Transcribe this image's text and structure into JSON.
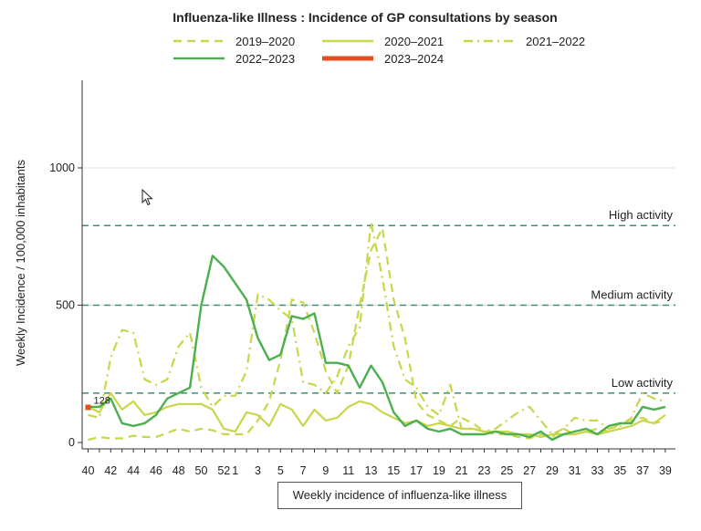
{
  "chart_data": {
    "type": "line",
    "title": "Influenza-like Illness : Incidence of GP consultations by season",
    "xlabel": "Weekly incidence of influenza-like illness",
    "ylabel": "Weekly Incidence / 100,000 inhabitants",
    "ylim": [
      0,
      1300
    ],
    "yticks": [
      0,
      500,
      1000
    ],
    "xticks": [
      "40",
      "42",
      "44",
      "46",
      "48",
      "50",
      "52",
      "1",
      "3",
      "5",
      "7",
      "9",
      "11",
      "13",
      "15",
      "17",
      "19",
      "21",
      "23",
      "25",
      "27",
      "29",
      "31",
      "33",
      "35",
      "37",
      "39"
    ],
    "weeks": [
      "40",
      "41",
      "42",
      "43",
      "44",
      "45",
      "46",
      "47",
      "48",
      "49",
      "50",
      "51",
      "52",
      "1",
      "2",
      "3",
      "4",
      "5",
      "6",
      "7",
      "8",
      "9",
      "10",
      "11",
      "12",
      "13",
      "14",
      "15",
      "16",
      "17",
      "18",
      "19",
      "20",
      "21",
      "22",
      "23",
      "24",
      "25",
      "26",
      "27",
      "28",
      "29",
      "30",
      "31",
      "32",
      "33",
      "34",
      "35",
      "36",
      "37",
      "38",
      "39"
    ],
    "thresholds": [
      {
        "label": "Low activity",
        "value": 180
      },
      {
        "label": "Medium activity",
        "value": 500
      },
      {
        "label": "High activity",
        "value": 790
      }
    ],
    "series": [
      {
        "name": "2019–2020",
        "color": "#c9d64a",
        "dash": "dash",
        "values": [
          10,
          20,
          15,
          15,
          25,
          20,
          20,
          35,
          50,
          40,
          50,
          45,
          30,
          30,
          30,
          80,
          150,
          300,
          520,
          510,
          400,
          260,
          180,
          280,
          500,
          700,
          780,
          520,
          380,
          150,
          100,
          80,
          60,
          90,
          70,
          40,
          30,
          30,
          20,
          15,
          30,
          20,
          50,
          30,
          40,
          50,
          40,
          70,
          80,
          90,
          70,
          80
        ]
      },
      {
        "name": "2020–2021",
        "color": "#c9d64a",
        "dash": "solid",
        "values": [
          130,
          110,
          180,
          120,
          150,
          100,
          110,
          130,
          140,
          140,
          140,
          120,
          50,
          40,
          110,
          100,
          60,
          140,
          120,
          60,
          120,
          80,
          90,
          130,
          150,
          140,
          110,
          90,
          70,
          80,
          60,
          70,
          60,
          50,
          50,
          40,
          40,
          40,
          30,
          30,
          20,
          30,
          30,
          30,
          40,
          30,
          40,
          50,
          60,
          80,
          70,
          100
        ]
      },
      {
        "name": "2021–2022",
        "color": "#c9d64a",
        "dash": "dashdot",
        "values": [
          100,
          90,
          310,
          410,
          400,
          230,
          210,
          230,
          350,
          400,
          200,
          130,
          170,
          170,
          260,
          540,
          520,
          480,
          450,
          220,
          210,
          180,
          240,
          350,
          420,
          800,
          600,
          350,
          230,
          200,
          130,
          100,
          210,
          50,
          50,
          40,
          50,
          80,
          110,
          130,
          80,
          30,
          50,
          90,
          80,
          80,
          50,
          60,
          90,
          180,
          160,
          150
        ]
      },
      {
        "name": "2022–2023",
        "color": "#4caf50",
        "dash": "solid",
        "values": [
          130,
          130,
          160,
          70,
          60,
          70,
          100,
          160,
          180,
          200,
          500,
          680,
          640,
          580,
          520,
          380,
          300,
          320,
          460,
          450,
          470,
          290,
          290,
          280,
          200,
          280,
          220,
          110,
          60,
          80,
          50,
          40,
          50,
          30,
          30,
          30,
          40,
          30,
          30,
          20,
          40,
          10,
          30,
          40,
          50,
          30,
          60,
          70,
          70,
          130,
          120,
          130
        ]
      },
      {
        "name": "2023–2024",
        "color": "#e4501e",
        "dash": "solid",
        "values": [
          128
        ]
      }
    ],
    "annotation": "128"
  }
}
